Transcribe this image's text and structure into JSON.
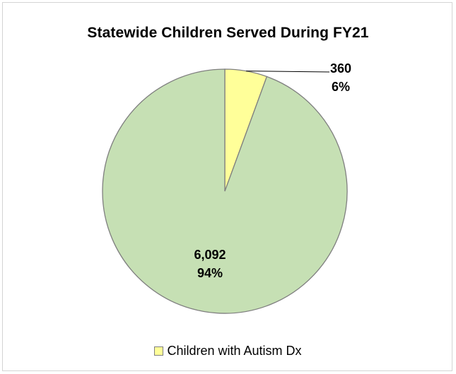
{
  "chart_data": {
    "type": "pie",
    "title": "Statewide Children Served During FY21",
    "series": [
      {
        "name": "Children with Autism Dx",
        "value": 360,
        "value_label": "360",
        "percent_label": "6%",
        "color": "#ffff99"
      },
      {
        "name": "",
        "value": 6092,
        "value_label": "6,092",
        "percent_label": "94%",
        "color": "#c6e0b4"
      }
    ],
    "slice_border_color": "#7f7f7f",
    "legend": {
      "placement": "bottom",
      "entries": [
        "Children with Autism Dx"
      ]
    }
  }
}
